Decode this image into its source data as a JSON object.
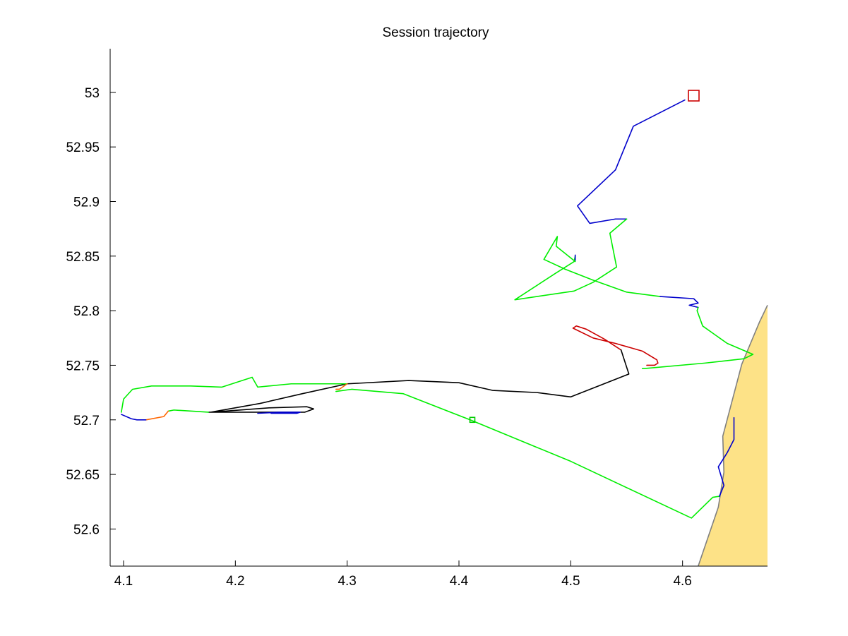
{
  "chart_data": {
    "type": "line",
    "title": "Session trajectory",
    "xlabel": "",
    "ylabel": "",
    "xlim": [
      4.088,
      4.676
    ],
    "ylim": [
      52.566,
      53.04
    ],
    "xticks": [
      4.1,
      4.2,
      4.3,
      4.4,
      4.5,
      4.6
    ],
    "xtick_labels": [
      "4.1",
      "4.2",
      "4.3",
      "4.4",
      "4.5",
      "4.6"
    ],
    "yticks": [
      52.6,
      52.65,
      52.7,
      52.75,
      52.8,
      52.85,
      52.9,
      52.95,
      53.0
    ],
    "ytick_labels": [
      "52.6",
      "52.65",
      "52.7",
      "52.75",
      "52.8",
      "52.85",
      "52.9",
      "52.95",
      "53"
    ],
    "grid": false,
    "colors": {
      "land_fill": "#fde287",
      "coastline": "#808080",
      "axes": "#000000"
    },
    "land": {
      "coastline": [
        [
          4.614,
          52.566
        ],
        [
          4.632,
          52.62
        ],
        [
          4.637,
          52.652
        ],
        [
          4.636,
          52.685
        ],
        [
          4.653,
          52.751
        ],
        [
          4.669,
          52.79
        ],
        [
          4.676,
          52.805
        ]
      ]
    },
    "series": [
      {
        "color": "#0000cc",
        "points": [
          [
            4.602,
            52.993
          ],
          [
            4.556,
            52.969
          ],
          [
            4.54,
            52.929
          ],
          [
            4.506,
            52.896
          ],
          [
            4.517,
            52.88
          ],
          [
            4.54,
            52.884
          ],
          [
            4.55,
            52.884
          ]
        ]
      },
      {
        "color": "#00ee00",
        "points": [
          [
            4.55,
            52.884
          ],
          [
            4.535,
            52.871
          ],
          [
            4.541,
            52.84
          ],
          [
            4.52,
            52.826
          ],
          [
            4.503,
            52.818
          ],
          [
            4.45,
            52.81
          ],
          [
            4.486,
            52.834
          ],
          [
            4.503,
            52.845
          ],
          [
            4.504,
            52.85
          ]
        ]
      },
      {
        "color": "#0000cc",
        "points": [
          [
            4.504,
            52.851
          ],
          [
            4.504,
            52.846
          ]
        ]
      },
      {
        "color": "#00ee00",
        "points": [
          [
            4.504,
            52.845
          ],
          [
            4.487,
            52.859
          ],
          [
            4.488,
            52.868
          ],
          [
            4.476,
            52.847
          ],
          [
            4.495,
            52.838
          ],
          [
            4.52,
            52.828
          ],
          [
            4.55,
            52.817
          ],
          [
            4.58,
            52.813
          ]
        ]
      },
      {
        "color": "#0000cc",
        "points": [
          [
            4.58,
            52.813
          ],
          [
            4.61,
            52.811
          ],
          [
            4.614,
            52.807
          ],
          [
            4.606,
            52.805
          ],
          [
            4.614,
            52.803
          ]
        ]
      },
      {
        "color": "#00ee00",
        "points": [
          [
            4.614,
            52.803
          ],
          [
            4.613,
            52.8
          ],
          [
            4.618,
            52.786
          ],
          [
            4.64,
            52.77
          ],
          [
            4.663,
            52.76
          ],
          [
            4.655,
            52.756
          ],
          [
            4.62,
            52.752
          ],
          [
            4.566,
            52.747
          ],
          [
            4.564,
            52.747
          ]
        ]
      },
      {
        "color": "#cc0000",
        "points": [
          [
            4.568,
            52.75
          ],
          [
            4.575,
            52.75
          ],
          [
            4.578,
            52.752
          ],
          [
            4.577,
            52.755
          ],
          [
            4.564,
            52.763
          ],
          [
            4.54,
            52.77
          ],
          [
            4.52,
            52.775
          ],
          [
            4.502,
            52.784
          ],
          [
            4.505,
            52.786
          ],
          [
            4.514,
            52.783
          ],
          [
            4.53,
            52.774
          ],
          [
            4.545,
            52.764
          ]
        ]
      },
      {
        "color": "#000000",
        "points": [
          [
            4.545,
            52.764
          ],
          [
            4.552,
            52.742
          ],
          [
            4.5,
            52.721
          ],
          [
            4.47,
            52.725
          ],
          [
            4.43,
            52.727
          ],
          [
            4.4,
            52.734
          ],
          [
            4.355,
            52.736
          ],
          [
            4.3,
            52.733
          ],
          [
            4.26,
            52.724
          ],
          [
            4.222,
            52.715
          ],
          [
            4.178,
            52.707
          ],
          [
            4.23,
            52.711
          ],
          [
            4.264,
            52.712
          ],
          [
            4.27,
            52.71
          ],
          [
            4.262,
            52.707
          ],
          [
            4.25,
            52.707
          ],
          [
            4.22,
            52.707
          ],
          [
            4.19,
            52.707
          ],
          [
            4.176,
            52.707
          ]
        ]
      },
      {
        "color": "#0000cc",
        "points": [
          [
            4.22,
            52.706
          ],
          [
            4.24,
            52.707
          ],
          [
            4.258,
            52.707
          ],
          [
            4.255,
            52.706
          ],
          [
            4.232,
            52.706
          ]
        ]
      },
      {
        "color": "#00ee00",
        "points": [
          [
            4.176,
            52.707
          ],
          [
            4.145,
            52.709
          ],
          [
            4.14,
            52.708
          ]
        ]
      },
      {
        "color": "#ff6600",
        "points": [
          [
            4.14,
            52.708
          ],
          [
            4.136,
            52.703
          ],
          [
            4.12,
            52.7
          ]
        ]
      },
      {
        "color": "#0000cc",
        "points": [
          [
            4.12,
            52.7
          ],
          [
            4.112,
            52.7
          ],
          [
            4.107,
            52.701
          ],
          [
            4.098,
            52.705
          ]
        ]
      },
      {
        "color": "#00ee00",
        "points": [
          [
            4.098,
            52.707
          ],
          [
            4.1,
            52.719
          ],
          [
            4.108,
            52.728
          ],
          [
            4.125,
            52.731
          ],
          [
            4.16,
            52.731
          ],
          [
            4.188,
            52.73
          ],
          [
            4.215,
            52.739
          ],
          [
            4.22,
            52.73
          ],
          [
            4.25,
            52.733
          ],
          [
            4.3,
            52.733
          ]
        ]
      },
      {
        "color": "#ff6600",
        "points": [
          [
            4.3,
            52.733
          ],
          [
            4.293,
            52.728
          ],
          [
            4.29,
            52.728
          ]
        ]
      },
      {
        "color": "#00ee00",
        "points": [
          [
            4.29,
            52.726
          ],
          [
            4.304,
            52.728
          ],
          [
            4.35,
            52.724
          ],
          [
            4.41,
            52.7
          ],
          [
            4.5,
            52.662
          ],
          [
            4.608,
            52.61
          ],
          [
            4.627,
            52.629
          ],
          [
            4.633,
            52.63
          ]
        ]
      },
      {
        "color": "#0000cc",
        "points": [
          [
            4.633,
            52.63
          ],
          [
            4.637,
            52.64
          ],
          [
            4.632,
            52.657
          ],
          [
            4.64,
            52.67
          ],
          [
            4.646,
            52.682
          ],
          [
            4.646,
            52.702
          ]
        ]
      }
    ],
    "markers": [
      {
        "shape": "square",
        "color": "#cc0000",
        "x": 4.61,
        "y": 52.997
      },
      {
        "shape": "square",
        "color": "#00cc00",
        "x": 4.412,
        "y": 52.7
      }
    ]
  }
}
